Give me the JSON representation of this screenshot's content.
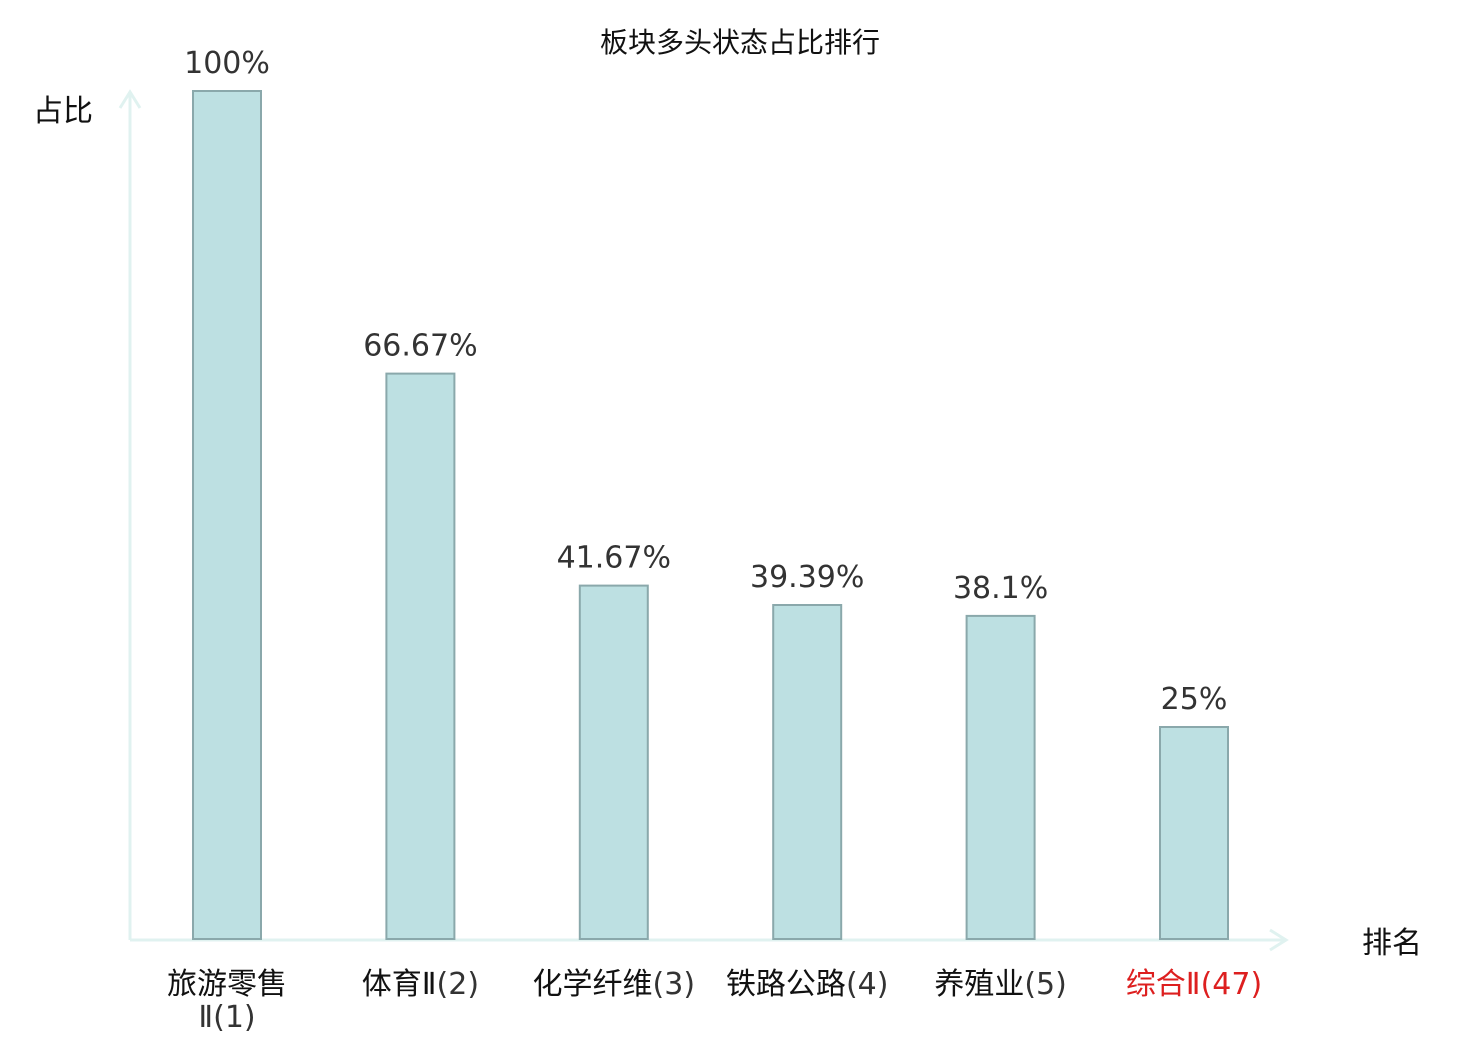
{
  "chart_data": {
    "type": "bar",
    "title": "板块多头状态占比排行",
    "ylabel": "占比",
    "xlabel": "排名",
    "ylim": [
      0,
      100
    ],
    "categories": [
      {
        "name": "旅游零售",
        "name_line2": "Ⅱ",
        "rank": "(1)",
        "highlight": false
      },
      {
        "name": "体育Ⅱ",
        "name_line2": "",
        "rank": "(2)",
        "highlight": false
      },
      {
        "name": "化学纤维",
        "name_line2": "",
        "rank": "(3)",
        "highlight": false
      },
      {
        "name": "铁路公路",
        "name_line2": "",
        "rank": "(4)",
        "highlight": false
      },
      {
        "name": "养殖业",
        "name_line2": "",
        "rank": "(5)",
        "highlight": false
      },
      {
        "name": "综合Ⅱ",
        "name_line2": "",
        "rank": "(47)",
        "highlight": true
      }
    ],
    "values": [
      100,
      66.67,
      41.67,
      39.39,
      38.1,
      25
    ],
    "value_labels": [
      "100%",
      "66.67%",
      "41.67%",
      "39.39%",
      "38.1%",
      "25%"
    ],
    "grid": false,
    "colors": {
      "bar_fill": "#bde0e2",
      "bar_stroke": "#8aa8ab",
      "axis": "#e0f2f0",
      "highlight": "#dd1f1f"
    }
  }
}
